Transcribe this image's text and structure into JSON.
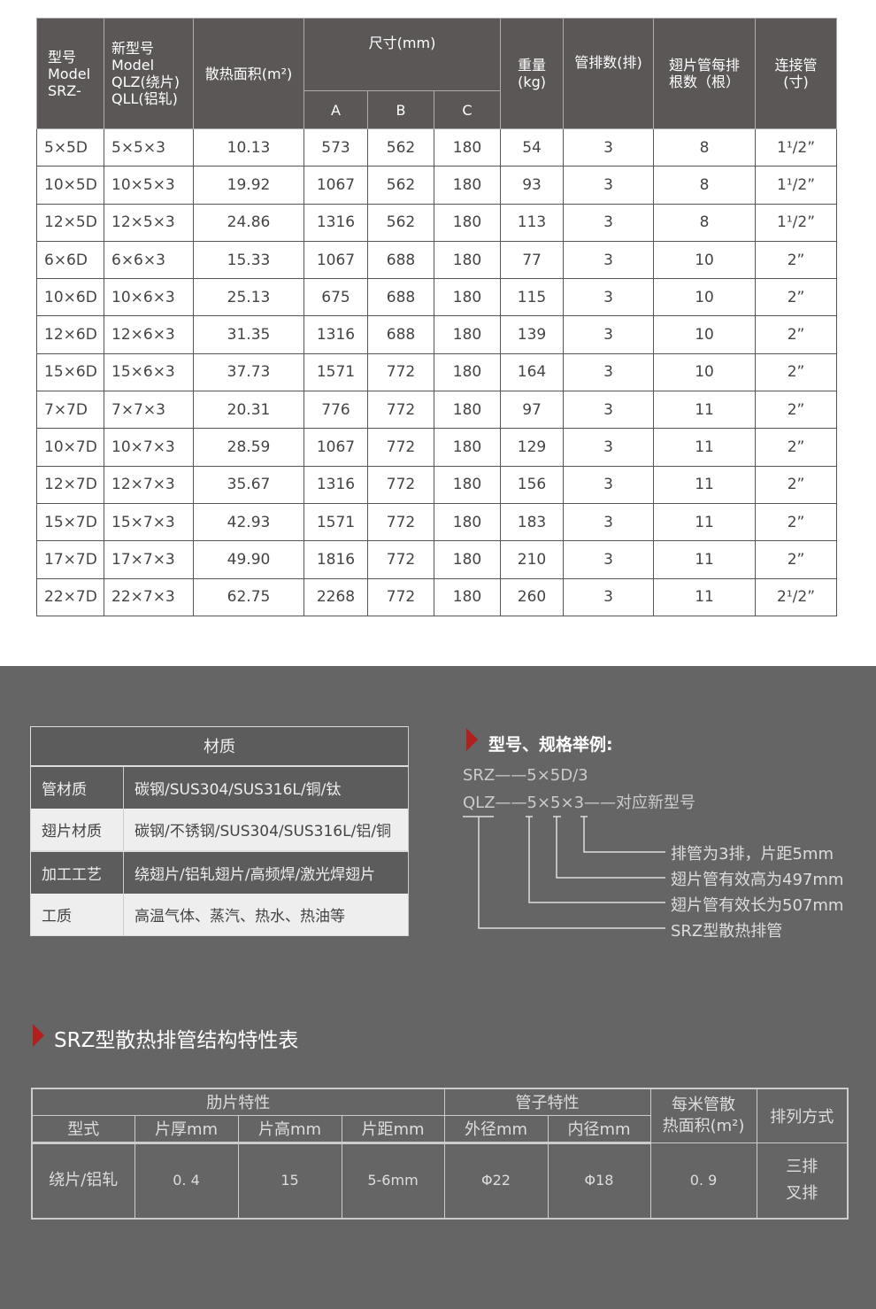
{
  "spec_table": {
    "headers": {
      "model": "型号\nModel\nSRZ-",
      "new_model": "新型号\nModel\nQLZ(绕片)\nQLL(铝轧)",
      "area": "散热面积(m²)",
      "size": "尺寸(mm)",
      "a": "A",
      "b": "B",
      "c": "C",
      "weight": "重量\n(kg)",
      "rows": "管排数(排)",
      "fins": "翅片管每排\n根数（根）",
      "pipe": "连接管\n(寸)"
    },
    "rows": [
      [
        "5×5D",
        "5×5×3",
        "10.13",
        "573",
        "562",
        "180",
        "54",
        "3",
        "8",
        "1¹/2”"
      ],
      [
        "10×5D",
        "10×5×3",
        "19.92",
        "1067",
        "562",
        "180",
        "93",
        "3",
        "8",
        "1¹/2”"
      ],
      [
        "12×5D",
        "12×5×3",
        "24.86",
        "1316",
        "562",
        "180",
        "113",
        "3",
        "8",
        "1¹/2”"
      ],
      [
        "6×6D",
        "6×6×3",
        "15.33",
        "1067",
        "688",
        "180",
        "77",
        "3",
        "10",
        "2”"
      ],
      [
        "10×6D",
        "10×6×3",
        "25.13",
        "675",
        "688",
        "180",
        "115",
        "3",
        "10",
        "2”"
      ],
      [
        "12×6D",
        "12×6×3",
        "31.35",
        "1316",
        "688",
        "180",
        "139",
        "3",
        "10",
        "2”"
      ],
      [
        "15×6D",
        "15×6×3",
        "37.73",
        "1571",
        "772",
        "180",
        "164",
        "3",
        "10",
        "2”"
      ],
      [
        "7×7D",
        "7×7×3",
        "20.31",
        "776",
        "772",
        "180",
        "97",
        "3",
        "11",
        "2”"
      ],
      [
        "10×7D",
        "10×7×3",
        "28.59",
        "1067",
        "772",
        "180",
        "129",
        "3",
        "11",
        "2”"
      ],
      [
        "12×7D",
        "12×7×3",
        "35.67",
        "1316",
        "772",
        "180",
        "156",
        "3",
        "11",
        "2”"
      ],
      [
        "15×7D",
        "15×7×3",
        "42.93",
        "1571",
        "772",
        "180",
        "183",
        "3",
        "11",
        "2”"
      ],
      [
        "17×7D",
        "17×7×3",
        "49.90",
        "1816",
        "772",
        "180",
        "210",
        "3",
        "11",
        "2”"
      ],
      [
        "22×7D",
        "22×7×3",
        "62.75",
        "2268",
        "772",
        "180",
        "260",
        "3",
        "11",
        "2¹/2”"
      ]
    ]
  },
  "materials": {
    "title": "材质",
    "rows": [
      [
        "管材质",
        "碳钢/SUS304/SUS316L/铜/钛"
      ],
      [
        "翅片材质",
        "碳钢/不锈钢/SUS304/SUS316L/铝/铜"
      ],
      [
        "加工工艺",
        "绕翅片/铝轧翅片/高频焊/激光焊翅片"
      ],
      [
        "工质",
        "高温气体、蒸汽、热水、热油等"
      ]
    ]
  },
  "example": {
    "title": "型号、规格举例:",
    "line1": "SRZ——5×5D/3",
    "line2": "QLZ——5×5×3——对应新型号",
    "notes": [
      "排管为3排，片距5mm",
      "翅片管有效高为497mm",
      "翅片管有效长为507mm",
      "SRZ型散热排管"
    ]
  },
  "structure": {
    "title": "SRZ型散热排管结构特性表",
    "group_fin": "肋片特性",
    "group_tube": "管子特性",
    "area": "每米管散\n热面积(m²)",
    "arrange": "排列方式",
    "cols": [
      "型式",
      "片厚mm",
      "片高mm",
      "片距mm",
      "外径mm",
      "内径mm"
    ],
    "values": [
      "绕片/铝轧",
      "0. 4",
      "15",
      "5-6mm",
      "Φ22",
      "Φ18",
      "0. 9",
      "三排\n叉排"
    ]
  },
  "colors": {
    "accent": "#b0201c",
    "header_bg": "#5b5757",
    "section_bg": "#656565"
  }
}
